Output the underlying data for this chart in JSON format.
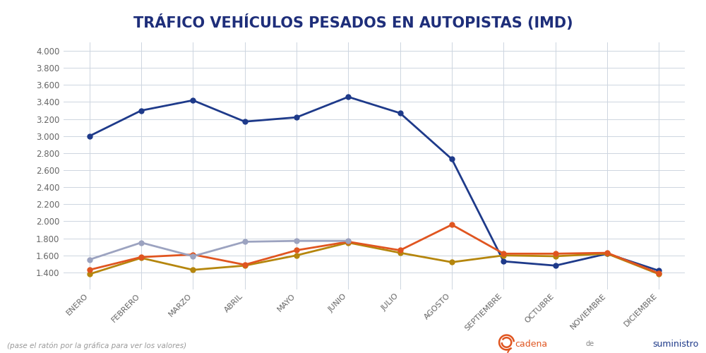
{
  "title": "TRÁFICO VEHÍCULOS PESADOS EN AUTOPISTAS (IMD)",
  "months": [
    "ENERO",
    "FEBRERO",
    "MARZO",
    "ABRIL",
    "MAYO",
    "JUNIO",
    "JULIO",
    "AGOSTO",
    "SEPTIEMBRE",
    "OCTUBRE",
    "NOVIEMBRE",
    "DICIEMBRE"
  ],
  "series": {
    "2021": [
      3000,
      3300,
      3420,
      3170,
      3220,
      3460,
      3270,
      2730,
      1530,
      1480,
      1620,
      1420
    ],
    "2022": [
      1380,
      1570,
      1430,
      1480,
      1600,
      1750,
      1630,
      1520,
      1600,
      1590,
      1620,
      1380
    ],
    "2023": [
      1430,
      1580,
      1610,
      1490,
      1660,
      1760,
      1660,
      1960,
      1620,
      1620,
      1630,
      1390
    ],
    "2024": [
      1550,
      1750,
      1590,
      1760,
      1770,
      1770,
      null,
      null,
      null,
      null,
      null,
      null
    ]
  },
  "colors": {
    "2021": "#1e3a8a",
    "2022": "#b5860d",
    "2023": "#e05520",
    "2024": "#9ca3c0"
  },
  "ylim": [
    1200,
    4100
  ],
  "yticks": [
    1400,
    1600,
    1800,
    2000,
    2200,
    2400,
    2600,
    2800,
    3000,
    3200,
    3400,
    3600,
    3800,
    4000
  ],
  "footer_left": "(pase el ratón por la gráfica para ver los valores)",
  "background_color": "#ffffff",
  "grid_color": "#cdd5e0",
  "marker_size": 5,
  "line_width": 2.0
}
